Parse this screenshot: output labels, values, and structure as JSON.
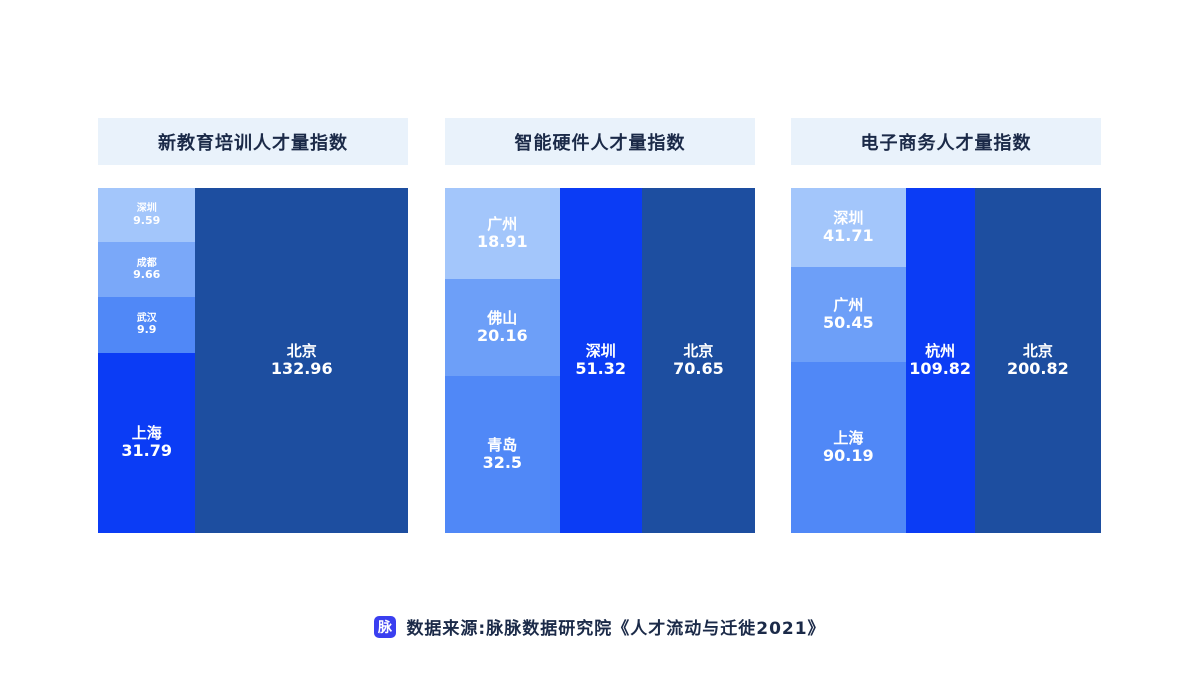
{
  "chart_data": [
    {
      "type": "treemap",
      "title": "新教育培训人才量指数",
      "columns": [
        [
          {
            "name": "深圳",
            "value": 9.59,
            "color": "#a3c6fb"
          },
          {
            "name": "成都",
            "value": 9.66,
            "color": "#7aa8f9"
          },
          {
            "name": "武汉",
            "value": 9.9,
            "color": "#5088f7"
          },
          {
            "name": "上海",
            "value": 31.79,
            "color": "#0b3cf5"
          }
        ],
        [
          {
            "name": "北京",
            "value": 132.96,
            "color": "#1d4ea0"
          }
        ]
      ]
    },
    {
      "type": "treemap",
      "title": "智能硬件人才量指数",
      "columns": [
        [
          {
            "name": "广州",
            "value": 18.91,
            "color": "#a3c6fb"
          },
          {
            "name": "佛山",
            "value": 20.16,
            "color": "#6d9ff8"
          },
          {
            "name": "青岛",
            "value": 32.5,
            "color": "#5088f7"
          }
        ],
        [
          {
            "name": "深圳",
            "value": 51.32,
            "color": "#0b3cf5"
          }
        ],
        [
          {
            "name": "北京",
            "value": 70.65,
            "color": "#1d4ea0"
          }
        ]
      ]
    },
    {
      "type": "treemap",
      "title": "电子商务人才量指数",
      "columns": [
        [
          {
            "name": "深圳",
            "value": 41.71,
            "color": "#a3c6fb"
          },
          {
            "name": "广州",
            "value": 50.45,
            "color": "#6d9ff8"
          },
          {
            "name": "上海",
            "value": 90.19,
            "color": "#5088f7"
          }
        ],
        [
          {
            "name": "杭州",
            "value": 109.82,
            "color": "#0b3cf5"
          }
        ],
        [
          {
            "name": "北京",
            "value": 200.82,
            "color": "#1d4ea0"
          }
        ]
      ]
    }
  ],
  "footer": {
    "logo": "脉",
    "text": "数据来源:脉脉数据研究院《人才流动与迁徙2021》"
  }
}
